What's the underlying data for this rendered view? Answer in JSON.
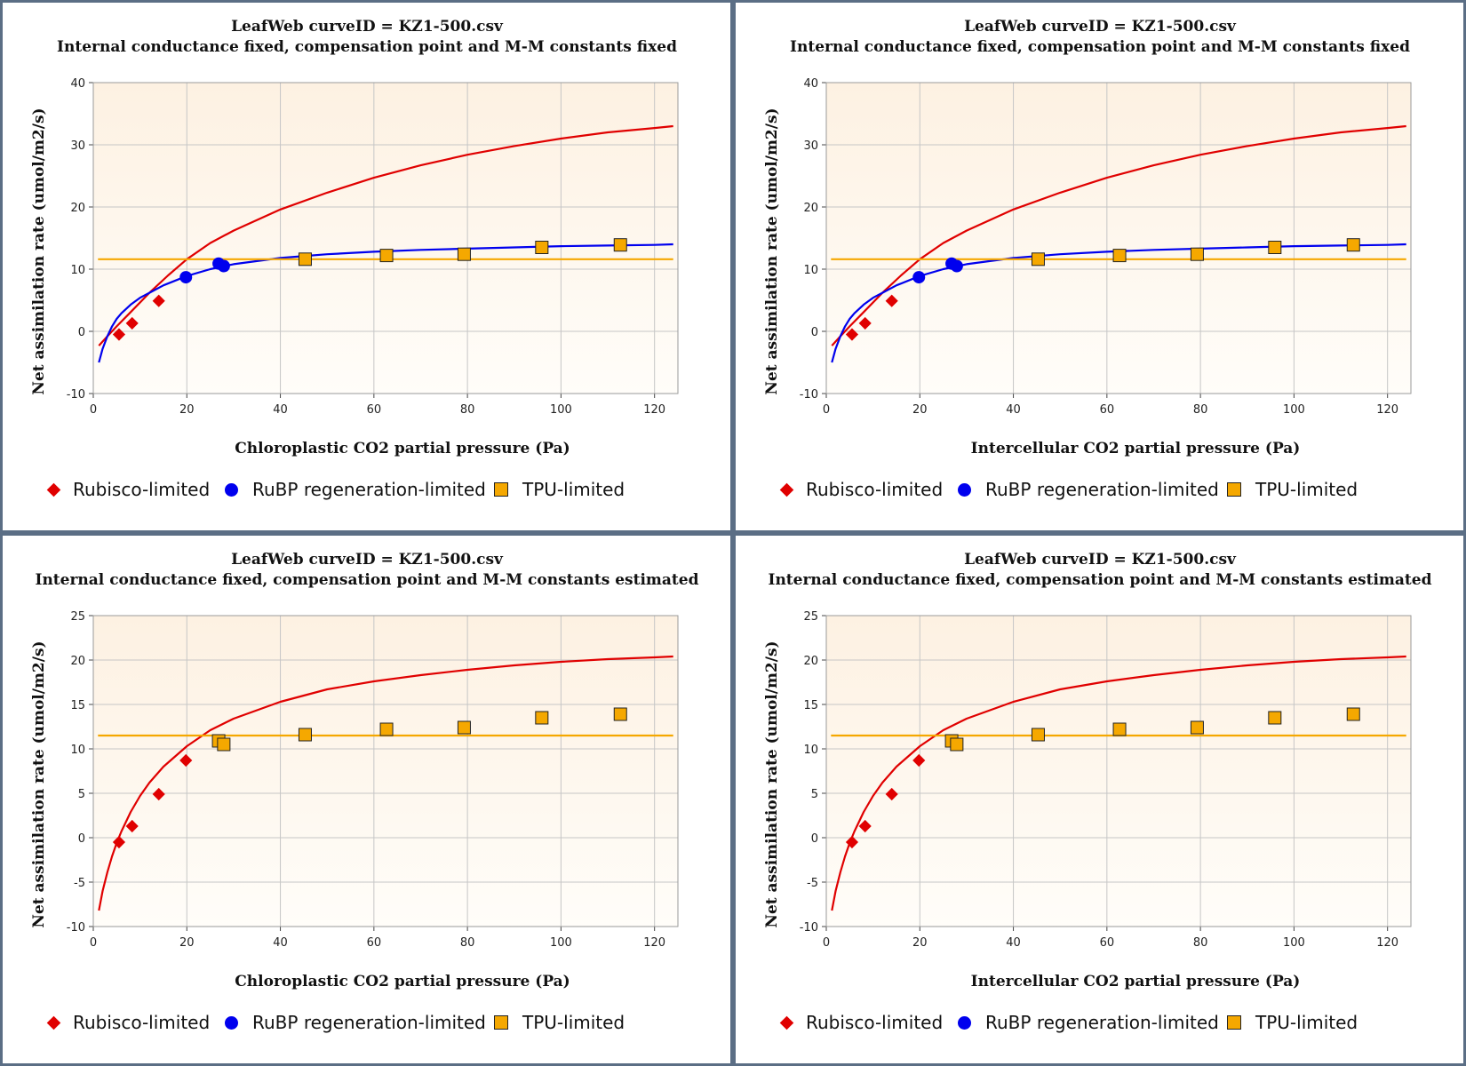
{
  "chart_data": [
    {
      "type": "scatter",
      "title": "LeafWeb curveID = KZ1-500.csv",
      "subtitle": "Internal conductance fixed, compensation point and M-M constants fixed",
      "xlabel": "Chloroplastic CO2 partial pressure (Pa)",
      "ylabel": "Net assimilation rate (umol/m2/s)",
      "xlim": [
        0,
        125
      ],
      "ylim": [
        -10,
        40
      ],
      "xticks": [
        0,
        20,
        40,
        60,
        80,
        100,
        120
      ],
      "yticks": [
        -10,
        0,
        10,
        20,
        30,
        40
      ],
      "grid": true,
      "legend_position": "bottom",
      "series": [
        {
          "name": "Rubisco-limited",
          "marker": "diamond",
          "color": "#e00000",
          "x": [
            5.5,
            8.3,
            14.0
          ],
          "y": [
            -0.5,
            1.3,
            4.9
          ]
        },
        {
          "name": "RuBP regeneration-limited",
          "marker": "circle",
          "color": "#0000ee",
          "x": [
            19.8,
            26.8,
            27.9
          ],
          "y": [
            8.7,
            10.9,
            10.5
          ]
        },
        {
          "name": "TPU-limited",
          "marker": "square",
          "color": "#f5a800",
          "x": [
            45.3,
            62.7,
            79.3,
            95.9,
            112.7
          ],
          "y": [
            11.6,
            12.2,
            12.4,
            13.5,
            13.9
          ]
        }
      ],
      "curves": [
        {
          "color": "#e00000",
          "x": [
            1.2,
            3,
            5,
            8,
            12,
            16,
            20,
            25,
            30,
            40,
            50,
            60,
            70,
            80,
            90,
            100,
            110,
            120,
            124
          ],
          "y": [
            -2.3,
            -0.8,
            0.8,
            3.1,
            6.2,
            9.0,
            11.6,
            14.2,
            16.2,
            19.6,
            22.3,
            24.7,
            26.7,
            28.4,
            29.8,
            31.0,
            32.0,
            32.7,
            33.0
          ]
        },
        {
          "color": "#0000ee",
          "x": [
            1.2,
            2,
            3,
            4,
            5,
            6,
            8,
            10,
            12,
            15,
            20,
            25,
            30,
            40,
            50,
            60,
            70,
            80,
            90,
            100,
            110,
            120,
            124
          ],
          "y": [
            -5.0,
            -2.8,
            -0.8,
            0.8,
            2.0,
            2.9,
            4.3,
            5.4,
            6.2,
            7.4,
            8.9,
            10.0,
            10.8,
            11.8,
            12.4,
            12.8,
            13.1,
            13.3,
            13.5,
            13.7,
            13.8,
            13.9,
            14.0
          ]
        },
        {
          "color": "#f5a800",
          "x": [
            1,
            124
          ],
          "y": [
            11.6,
            11.6
          ]
        }
      ]
    },
    {
      "type": "scatter",
      "title": "LeafWeb curveID = KZ1-500.csv",
      "subtitle": "Internal conductance fixed, compensation point and M-M constants fixed",
      "xlabel": "Intercellular CO2 partial pressure (Pa)",
      "ylabel": "Net assimilation rate (umol/m2/s)",
      "xlim": [
        0,
        125
      ],
      "ylim": [
        -10,
        40
      ],
      "xticks": [
        0,
        20,
        40,
        60,
        80,
        100,
        120
      ],
      "yticks": [
        -10,
        0,
        10,
        20,
        30,
        40
      ],
      "grid": true,
      "legend_position": "bottom",
      "series": [
        {
          "name": "Rubisco-limited",
          "marker": "diamond",
          "color": "#e00000",
          "x": [
            5.5,
            8.3,
            14.0
          ],
          "y": [
            -0.5,
            1.3,
            4.9
          ]
        },
        {
          "name": "RuBP regeneration-limited",
          "marker": "circle",
          "color": "#0000ee",
          "x": [
            19.8,
            26.8,
            27.9
          ],
          "y": [
            8.7,
            10.9,
            10.5
          ]
        },
        {
          "name": "TPU-limited",
          "marker": "square",
          "color": "#f5a800",
          "x": [
            45.3,
            62.7,
            79.3,
            95.9,
            112.7
          ],
          "y": [
            11.6,
            12.2,
            12.4,
            13.5,
            13.9
          ]
        }
      ],
      "curves": [
        {
          "color": "#e00000",
          "x": [
            1.2,
            3,
            5,
            8,
            12,
            16,
            20,
            25,
            30,
            40,
            50,
            60,
            70,
            80,
            90,
            100,
            110,
            120,
            124
          ],
          "y": [
            -2.3,
            -0.8,
            0.8,
            3.1,
            6.2,
            9.0,
            11.6,
            14.2,
            16.2,
            19.6,
            22.3,
            24.7,
            26.7,
            28.4,
            29.8,
            31.0,
            32.0,
            32.7,
            33.0
          ]
        },
        {
          "color": "#0000ee",
          "x": [
            1.2,
            2,
            3,
            4,
            5,
            6,
            8,
            10,
            12,
            15,
            20,
            25,
            30,
            40,
            50,
            60,
            70,
            80,
            90,
            100,
            110,
            120,
            124
          ],
          "y": [
            -5.0,
            -2.8,
            -0.8,
            0.8,
            2.0,
            2.9,
            4.3,
            5.4,
            6.2,
            7.4,
            8.9,
            10.0,
            10.8,
            11.8,
            12.4,
            12.8,
            13.1,
            13.3,
            13.5,
            13.7,
            13.8,
            13.9,
            14.0
          ]
        },
        {
          "color": "#f5a800",
          "x": [
            1,
            124
          ],
          "y": [
            11.6,
            11.6
          ]
        }
      ]
    },
    {
      "type": "scatter",
      "title": "LeafWeb curveID = KZ1-500.csv",
      "subtitle": "Internal conductance fixed, compensation point and M-M constants estimated",
      "xlabel": "Chloroplastic CO2 partial pressure (Pa)",
      "ylabel": "Net assimilation rate (umol/m2/s)",
      "xlim": [
        0,
        125
      ],
      "ylim": [
        -10,
        25
      ],
      "xticks": [
        0,
        20,
        40,
        60,
        80,
        100,
        120
      ],
      "yticks": [
        -10,
        -5,
        0,
        5,
        10,
        15,
        20,
        25
      ],
      "grid": true,
      "legend_position": "bottom",
      "series": [
        {
          "name": "Rubisco-limited",
          "marker": "diamond",
          "color": "#e00000",
          "x": [
            5.5,
            8.3,
            14.0,
            19.8
          ],
          "y": [
            -0.5,
            1.3,
            4.9,
            8.7
          ]
        },
        {
          "name": "RuBP regeneration-limited",
          "marker": "circle",
          "color": "#0000ee",
          "x": [],
          "y": []
        },
        {
          "name": "TPU-limited",
          "marker": "square",
          "color": "#f5a800",
          "x": [
            26.8,
            27.9,
            45.3,
            62.7,
            79.3,
            95.9,
            112.7
          ],
          "y": [
            10.9,
            10.5,
            11.6,
            12.2,
            12.4,
            13.5,
            13.9
          ]
        }
      ],
      "curves": [
        {
          "color": "#e00000",
          "x": [
            1.2,
            2,
            3,
            4,
            5,
            6,
            8,
            10,
            12,
            15,
            20,
            25,
            30,
            40,
            50,
            60,
            70,
            80,
            90,
            100,
            110,
            120,
            124
          ],
          "y": [
            -8.2,
            -6.0,
            -3.9,
            -2.1,
            -0.6,
            0.7,
            2.9,
            4.7,
            6.2,
            8.0,
            10.3,
            12.1,
            13.4,
            15.3,
            16.7,
            17.6,
            18.3,
            18.9,
            19.4,
            19.8,
            20.1,
            20.3,
            20.4
          ]
        },
        {
          "color": "#f5a800",
          "x": [
            1,
            124
          ],
          "y": [
            11.5,
            11.5
          ]
        }
      ]
    },
    {
      "type": "scatter",
      "title": "LeafWeb curveID = KZ1-500.csv",
      "subtitle": "Internal conductance fixed, compensation point and M-M constants estimated",
      "xlabel": "Intercellular CO2 partial pressure (Pa)",
      "ylabel": "Net assimilation rate (umol/m2/s)",
      "xlim": [
        0,
        125
      ],
      "ylim": [
        -10,
        25
      ],
      "xticks": [
        0,
        20,
        40,
        60,
        80,
        100,
        120
      ],
      "yticks": [
        -10,
        -5,
        0,
        5,
        10,
        15,
        20,
        25
      ],
      "grid": true,
      "legend_position": "bottom",
      "series": [
        {
          "name": "Rubisco-limited",
          "marker": "diamond",
          "color": "#e00000",
          "x": [
            5.5,
            8.3,
            14.0,
            19.8
          ],
          "y": [
            -0.5,
            1.3,
            4.9,
            8.7
          ]
        },
        {
          "name": "RuBP regeneration-limited",
          "marker": "circle",
          "color": "#0000ee",
          "x": [],
          "y": []
        },
        {
          "name": "TPU-limited",
          "marker": "square",
          "color": "#f5a800",
          "x": [
            26.8,
            27.9,
            45.3,
            62.7,
            79.3,
            95.9,
            112.7
          ],
          "y": [
            10.9,
            10.5,
            11.6,
            12.2,
            12.4,
            13.5,
            13.9
          ]
        }
      ],
      "curves": [
        {
          "color": "#e00000",
          "x": [
            1.2,
            2,
            3,
            4,
            5,
            6,
            8,
            10,
            12,
            15,
            20,
            25,
            30,
            40,
            50,
            60,
            70,
            80,
            90,
            100,
            110,
            120,
            124
          ],
          "y": [
            -8.2,
            -6.0,
            -3.9,
            -2.1,
            -0.6,
            0.7,
            2.9,
            4.7,
            6.2,
            8.0,
            10.3,
            12.1,
            13.4,
            15.3,
            16.7,
            17.6,
            18.3,
            18.9,
            19.4,
            19.8,
            20.1,
            20.3,
            20.4
          ]
        },
        {
          "color": "#f5a800",
          "x": [
            1,
            124
          ],
          "y": [
            11.5,
            11.5
          ]
        }
      ]
    }
  ]
}
